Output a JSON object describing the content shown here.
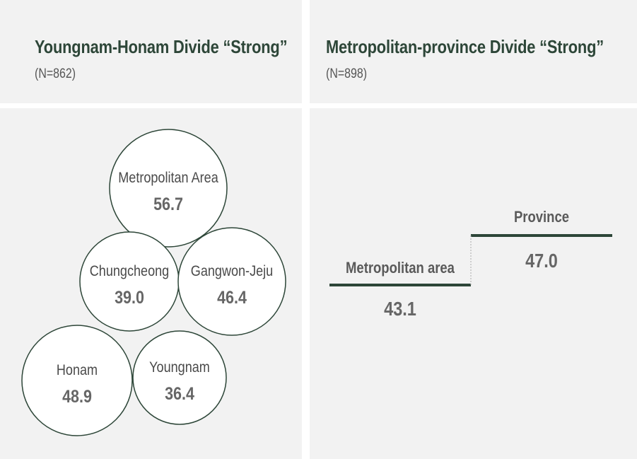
{
  "chart_data": [
    {
      "type": "bubble",
      "title": "Youngnam-Honam Divide “Strong”",
      "subtitle": "(N=862)",
      "items": [
        {
          "label": "Metropolitan Area",
          "value": "56.7"
        },
        {
          "label": "Chungcheong",
          "value": "39.0"
        },
        {
          "label": "Gangwon-Jeju",
          "value": "46.4"
        },
        {
          "label": "Honam",
          "value": "48.9"
        },
        {
          "label": "Youngnam",
          "value": "36.4"
        }
      ]
    },
    {
      "type": "step",
      "title": "Metropolitan-province Divide “Strong”",
      "subtitle": "(N=898)",
      "items": [
        {
          "label": "Metropolitan area",
          "value": "43.1"
        },
        {
          "label": "Province",
          "value": "47.0"
        }
      ]
    }
  ],
  "colors": {
    "circle_stroke": "#2d4638",
    "line": "#2d4638",
    "title": "#2d4638",
    "panel_bg": "#f2f2f2"
  }
}
